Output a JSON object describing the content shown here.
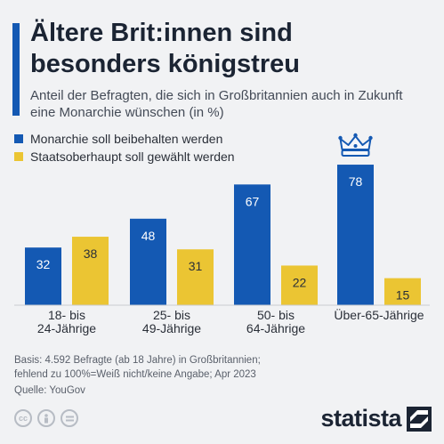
{
  "title": "Ältere Brit:innen sind besonders königstreu",
  "subtitle": "Anteil der Befragten, die sich in Großbritannien auch in Zukunft eine Monarchie wünschen (in %)",
  "legend": [
    {
      "label": "Monarchie soll beibehalten werden",
      "color": "#1459b3"
    },
    {
      "label": "Staatsoberhaupt soll gewählt werden",
      "color": "#ebc533"
    }
  ],
  "chart_data": {
    "type": "bar",
    "categories": [
      [
        "18- bis",
        "24-Jährige"
      ],
      [
        "25- bis",
        "49-Jährige"
      ],
      [
        "50- bis",
        "64-Jährige"
      ],
      [
        "Über-65-Jährige"
      ]
    ],
    "series": [
      {
        "name": "Monarchie soll beibehalten werden",
        "values": [
          32,
          48,
          67,
          78
        ],
        "color": "#1459b3"
      },
      {
        "name": "Staatsoberhaupt soll gewählt werden",
        "values": [
          38,
          31,
          22,
          15
        ],
        "color": "#ebc533"
      }
    ],
    "ylim": [
      0,
      80
    ],
    "grid": false,
    "legend_position": "top-left",
    "annotations": [
      "crown-icon above Über-65-Jährige"
    ]
  },
  "notes": [
    "Basis: 4.592 Befragte (ab 18 Jahre) in Großbritannien;",
    "fehlend zu 100%=Weiß nicht/keine Angabe; Apr 2023",
    "Quelle: YouGov"
  ],
  "brand": "statista",
  "cc_icons": [
    "cc-icon",
    "person-icon",
    "equals-icon"
  ]
}
